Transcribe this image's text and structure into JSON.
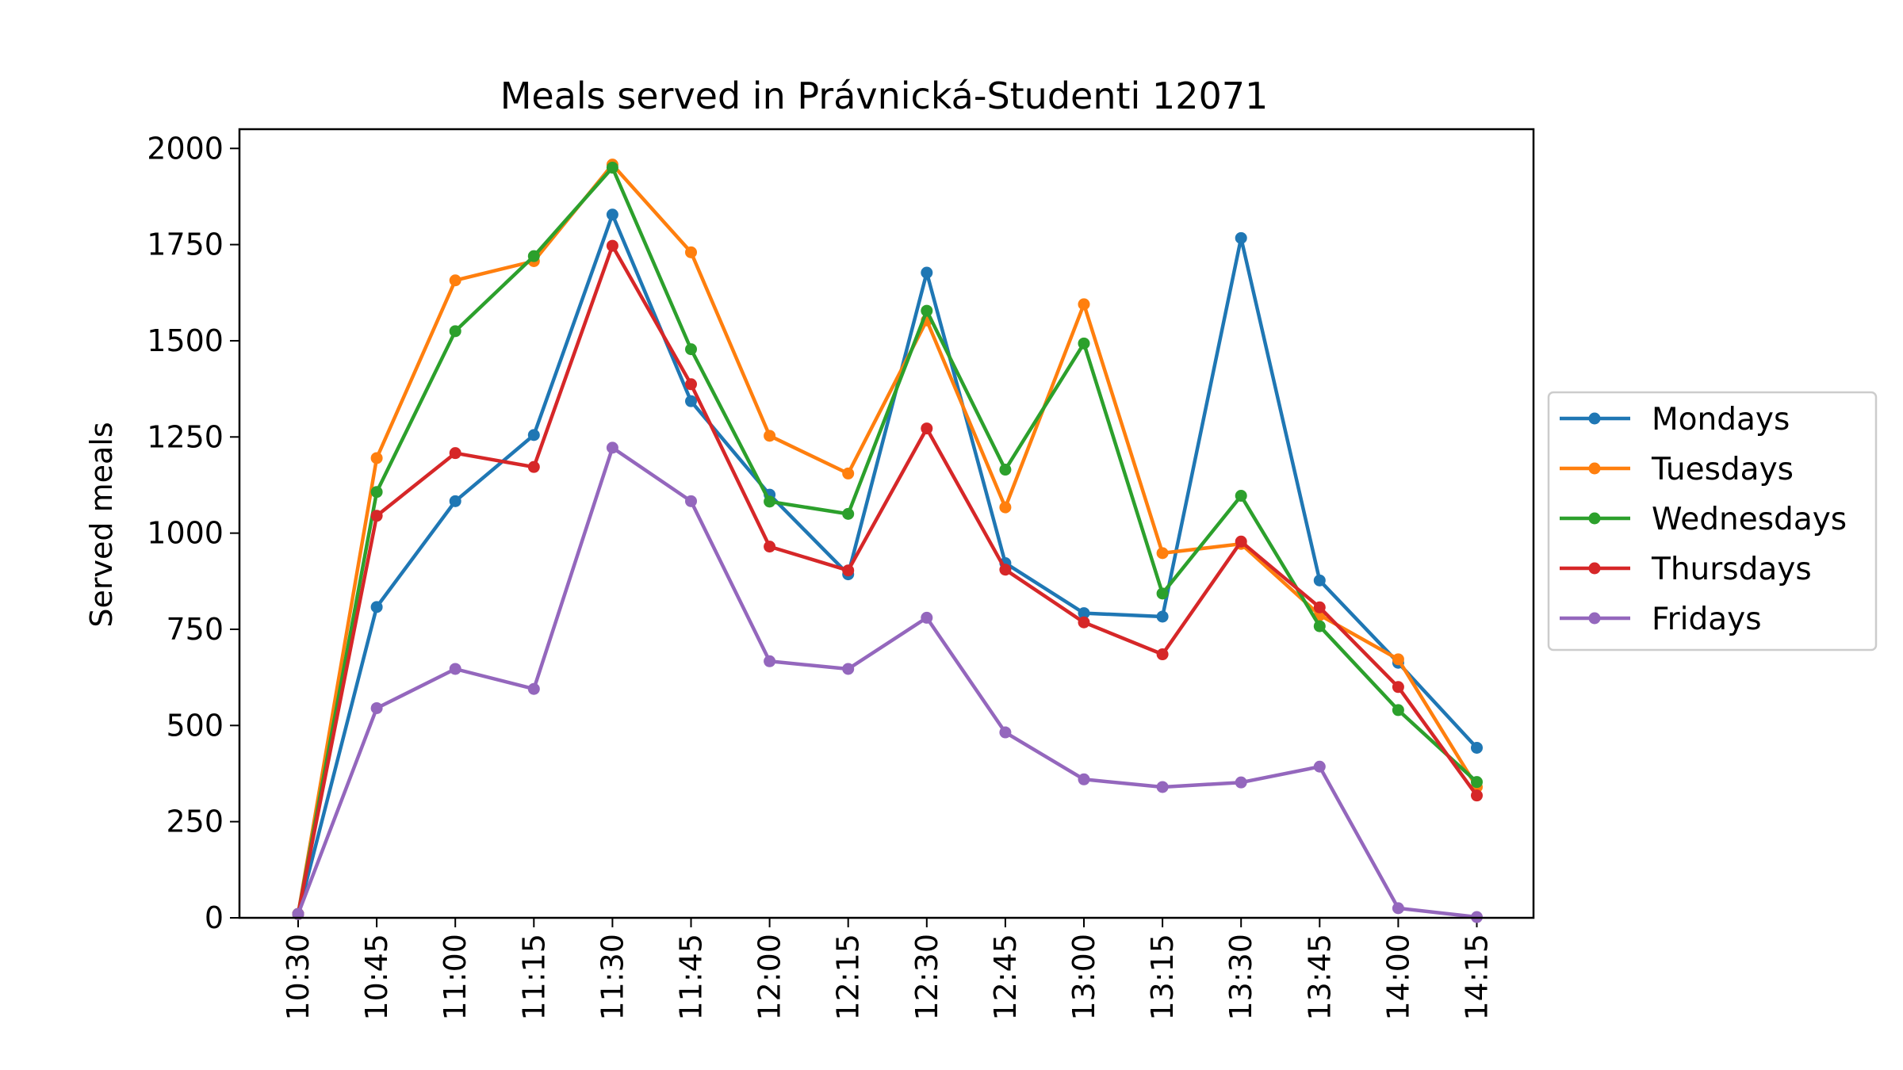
{
  "chart_data": {
    "type": "line",
    "title": "Meals served in Právnická-Studenti 12071",
    "xlabel": "",
    "ylabel": "Served meals",
    "categories": [
      "10:30",
      "10:45",
      "11:00",
      "11:15",
      "11:30",
      "11:45",
      "12:00",
      "12:15",
      "12:30",
      "12:45",
      "13:00",
      "13:15",
      "13:30",
      "13:45",
      "14:00",
      "14:15"
    ],
    "ylim": [
      0,
      2050
    ],
    "yticks": [
      0,
      250,
      500,
      750,
      1000,
      1250,
      1500,
      1750,
      2000
    ],
    "grid": false,
    "legend_position": "center-right-outside",
    "markers": true,
    "series": [
      {
        "name": "Mondays",
        "color": "#1f77b4",
        "values": [
          10,
          808,
          1083,
          1255,
          1828,
          1343,
          1100,
          893,
          1677,
          922,
          792,
          783,
          1767,
          877,
          663,
          442
        ]
      },
      {
        "name": "Tuesdays",
        "color": "#ff7f0e",
        "values": [
          10,
          1195,
          1657,
          1707,
          1958,
          1730,
          1253,
          1155,
          1553,
          1067,
          1595,
          948,
          972,
          787,
          672,
          340
        ]
      },
      {
        "name": "Wednesdays",
        "color": "#2ca02c",
        "values": [
          10,
          1107,
          1525,
          1720,
          1950,
          1478,
          1082,
          1050,
          1578,
          1165,
          1493,
          843,
          1097,
          758,
          540,
          353
        ]
      },
      {
        "name": "Thursdays",
        "color": "#d62728",
        "values": [
          10,
          1045,
          1208,
          1172,
          1747,
          1387,
          965,
          903,
          1272,
          905,
          768,
          685,
          978,
          807,
          600,
          318
        ]
      },
      {
        "name": "Fridays",
        "color": "#9467bd",
        "values": [
          10,
          545,
          647,
          595,
          1222,
          1083,
          667,
          647,
          780,
          482,
          360,
          340,
          352,
          393,
          25,
          2
        ]
      }
    ]
  }
}
